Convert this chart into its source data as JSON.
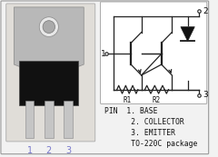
{
  "bg_color": "#f2f2f2",
  "outer_border_color": "#999999",
  "text_color": "#111111",
  "pin_labels": [
    "1",
    "2",
    "3"
  ],
  "pin_label_color": "#7777cc",
  "pin_descriptions": [
    "PIN  1. BASE",
    "      2. COLLECTOR",
    "      3. EMITTER",
    "      TO-220C package"
  ],
  "R1_label": "R1",
  "R2_label": "R2",
  "circuit_line_color": "#222222",
  "lw": 0.9,
  "photo_bg": "#e0ddd8",
  "tab_color": "#b8b8b8",
  "tab_edge": "#888888",
  "body_color": "#111111",
  "body_edge": "#444444",
  "lead_color": "#c5c5c5",
  "lead_edge": "#888888",
  "hole_color": "#d8d8d8",
  "hole_inner": "#aaaaaa",
  "circ_bg": "#ffffff",
  "diode_fill": "#111111"
}
